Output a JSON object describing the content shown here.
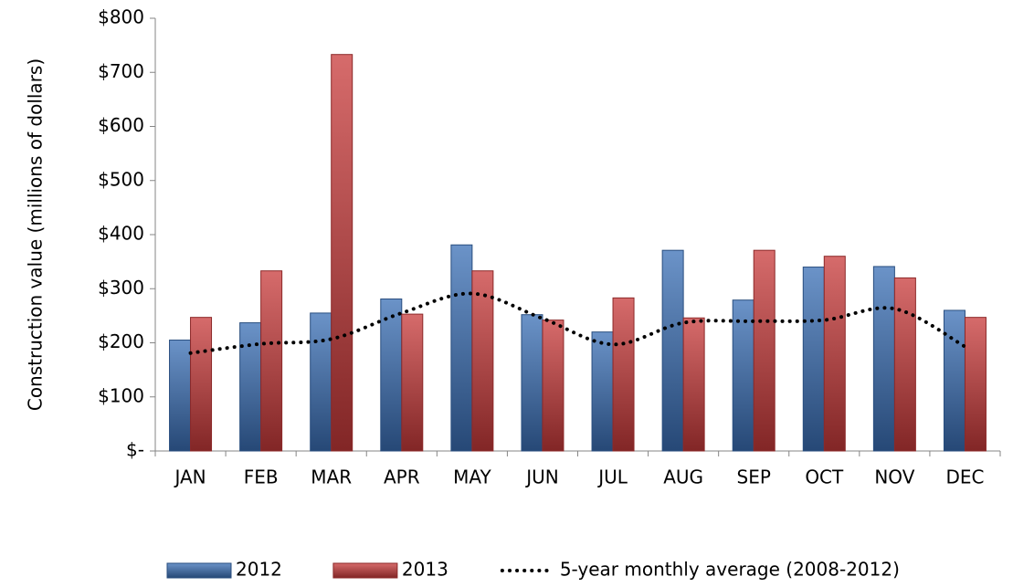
{
  "chart_data": {
    "type": "bar",
    "y_axis_label": "Construction value (millions of dollars)",
    "categories": [
      "JAN",
      "FEB",
      "MAR",
      "APR",
      "MAY",
      "JUN",
      "JUL",
      "AUG",
      "SEP",
      "OCT",
      "NOV",
      "DEC"
    ],
    "series": [
      {
        "name": "2012",
        "color": "#3a6fb5",
        "values": [
          205,
          237,
          255,
          281,
          381,
          252,
          220,
          371,
          279,
          340,
          341,
          260
        ]
      },
      {
        "name": "2013",
        "color": "#c83a3a",
        "values": [
          247,
          333,
          733,
          253,
          333,
          242,
          283,
          246,
          371,
          360,
          320,
          247
        ]
      },
      {
        "name": "5-year monthly average (2008-2012)",
        "type": "line",
        "color": "#000000",
        "dotted": true,
        "smooth": true,
        "values": [
          181,
          198,
          207,
          255,
          291,
          245,
          197,
          237,
          240,
          242,
          263,
          193
        ]
      }
    ],
    "ylim": [
      0,
      800
    ],
    "yticks": [
      {
        "value": 0,
        "label": "$-"
      },
      {
        "value": 100,
        "label": "$100"
      },
      {
        "value": 200,
        "label": "$200"
      },
      {
        "value": 300,
        "label": "$300"
      },
      {
        "value": 400,
        "label": "$400"
      },
      {
        "value": 500,
        "label": "$500"
      },
      {
        "value": 600,
        "label": "$600"
      },
      {
        "value": 700,
        "label": "$700"
      },
      {
        "value": 800,
        "label": "$800"
      }
    ],
    "grid": false,
    "legend": "bottom"
  }
}
